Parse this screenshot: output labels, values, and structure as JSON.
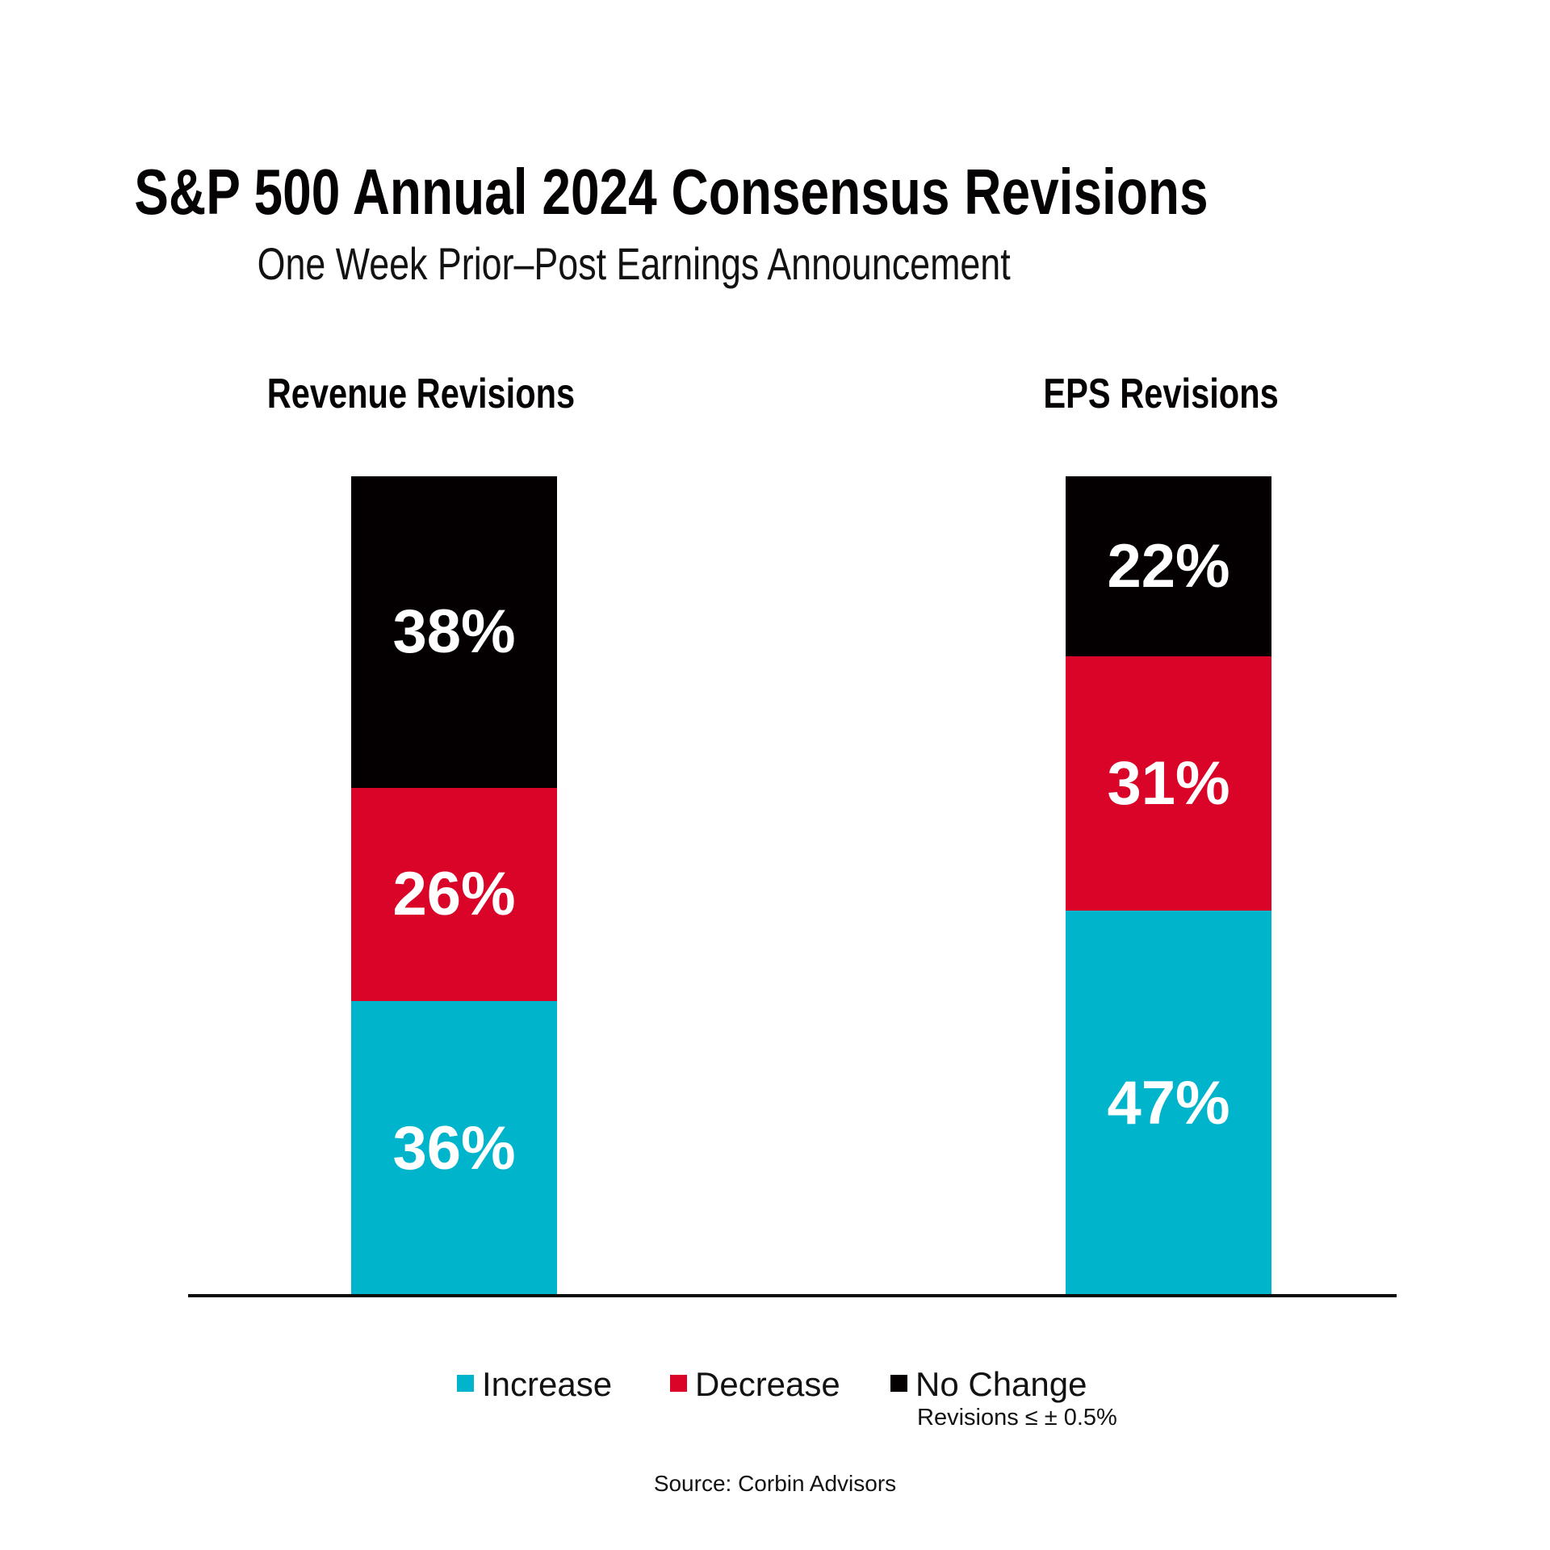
{
  "title": "S&P 500 Annual 2024 Consensus Revisions",
  "subtitle": "One Week Prior–Post Earnings Announcement",
  "source": "Source: Corbin Advisors",
  "colors": {
    "increase": "#00B4CC",
    "decrease": "#DA0428",
    "no_change": "#040001",
    "axis": "#0b0b0b",
    "label_text": "#ffffff"
  },
  "legend": {
    "items": [
      {
        "label": "Increase",
        "color_key": "increase"
      },
      {
        "label": "Decrease",
        "color_key": "decrease"
      },
      {
        "label": "No Change",
        "color_key": "no_change",
        "note": "Revisions ≤ ± 0.5%"
      }
    ]
  },
  "chart_data": {
    "type": "bar",
    "subtype": "stacked-100-percent",
    "categories": [
      "Revenue Revisions",
      "EPS Revisions"
    ],
    "series": [
      {
        "name": "Increase",
        "values": [
          36,
          47
        ],
        "color": "#00B4CC"
      },
      {
        "name": "Decrease",
        "values": [
          26,
          31
        ],
        "color": "#DA0428"
      },
      {
        "name": "No Change",
        "values": [
          38,
          22
        ],
        "color": "#040001"
      }
    ],
    "value_suffix": "%",
    "ylim": [
      0,
      100
    ],
    "grid": false,
    "axis_labels_shown": false,
    "legend_position": "bottom",
    "annotations": [
      "Revisions ≤ ± 0.5%"
    ]
  }
}
